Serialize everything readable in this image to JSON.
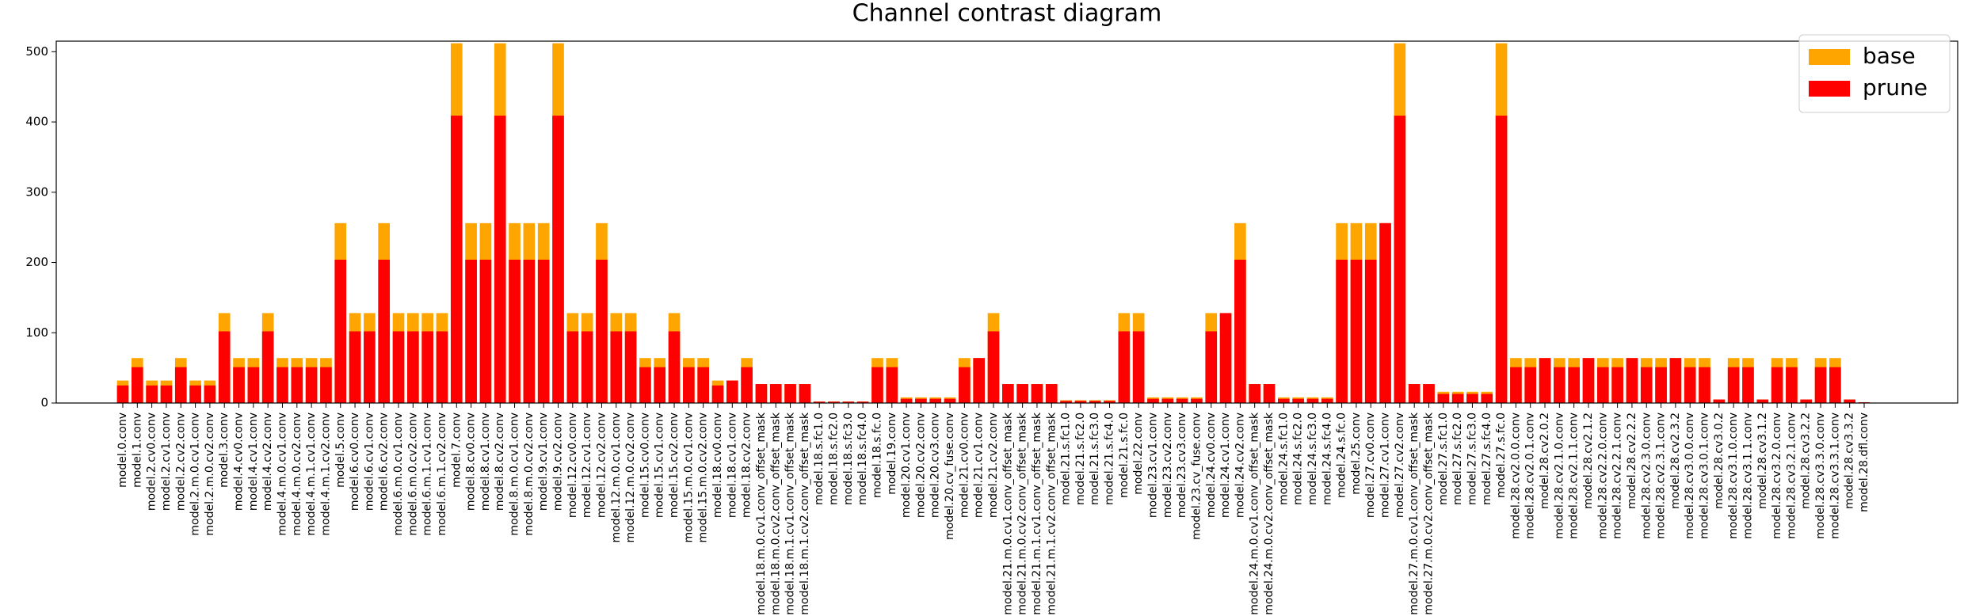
{
  "chart_data": {
    "type": "bar",
    "barmode": "overlay",
    "title": "Channel contrast diagram",
    "legend": "upper right",
    "categories": [
      "model.0.conv",
      "model.1.conv",
      "model.2.cv0.conv",
      "model.2.cv1.conv",
      "model.2.cv2.conv",
      "model.2.m.0.cv1.conv",
      "model.2.m.0.cv2.conv",
      "model.3.conv",
      "model.4.cv0.conv",
      "model.4.cv1.conv",
      "model.4.cv2.conv",
      "model.4.m.0.cv1.conv",
      "model.4.m.0.cv2.conv",
      "model.4.m.1.cv1.conv",
      "model.4.m.1.cv2.conv",
      "model.5.conv",
      "model.6.cv0.conv",
      "model.6.cv1.conv",
      "model.6.cv2.conv",
      "model.6.m.0.cv1.conv",
      "model.6.m.0.cv2.conv",
      "model.6.m.1.cv1.conv",
      "model.6.m.1.cv2.conv",
      "model.7.conv",
      "model.8.cv0.conv",
      "model.8.cv1.conv",
      "model.8.cv2.conv",
      "model.8.m.0.cv1.conv",
      "model.8.m.0.cv2.conv",
      "model.9.cv1.conv",
      "model.9.cv2.conv",
      "model.12.cv0.conv",
      "model.12.cv1.conv",
      "model.12.cv2.conv",
      "model.12.m.0.cv1.conv",
      "model.12.m.0.cv2.conv",
      "model.15.cv0.conv",
      "model.15.cv1.conv",
      "model.15.cv2.conv",
      "model.15.m.0.cv1.conv",
      "model.15.m.0.cv2.conv",
      "model.18.cv0.conv",
      "model.18.cv1.conv",
      "model.18.cv2.conv",
      "model.18.m.0.cv1.conv_offset_mask",
      "model.18.m.0.cv2.conv_offset_mask",
      "model.18.m.1.cv1.conv_offset_mask",
      "model.18.m.1.cv2.conv_offset_mask",
      "model.18.s.fc1.0",
      "model.18.s.fc2.0",
      "model.18.s.fc3.0",
      "model.18.s.fc4.0",
      "model.18.s.fc.0",
      "model.19.conv",
      "model.20.cv1.conv",
      "model.20.cv2.conv",
      "model.20.cv3.conv",
      "model.20.cv_fuse.conv",
      "model.21.cv0.conv",
      "model.21.cv1.conv",
      "model.21.cv2.conv",
      "model.21.m.0.cv1.conv_offset_mask",
      "model.21.m.0.cv2.conv_offset_mask",
      "model.21.m.1.cv1.conv_offset_mask",
      "model.21.m.1.cv2.conv_offset_mask",
      "model.21.s.fc1.0",
      "model.21.s.fc2.0",
      "model.21.s.fc3.0",
      "model.21.s.fc4.0",
      "model.21.s.fc.0",
      "model.22.conv",
      "model.23.cv1.conv",
      "model.23.cv2.conv",
      "model.23.cv3.conv",
      "model.23.cv_fuse.conv",
      "model.24.cv0.conv",
      "model.24.cv1.conv",
      "model.24.cv2.conv",
      "model.24.m.0.cv1.conv_offset_mask",
      "model.24.m.0.cv2.conv_offset_mask",
      "model.24.s.fc1.0",
      "model.24.s.fc2.0",
      "model.24.s.fc3.0",
      "model.24.s.fc4.0",
      "model.24.s.fc.0",
      "model.25.conv",
      "model.27.cv0.conv",
      "model.27.cv1.conv",
      "model.27.cv2.conv",
      "model.27.m.0.cv1.conv_offset_mask",
      "model.27.m.0.cv2.conv_offset_mask",
      "model.27.s.fc1.0",
      "model.27.s.fc2.0",
      "model.27.s.fc3.0",
      "model.27.s.fc4.0",
      "model.27.s.fc.0",
      "model.28.cv2.0.0.conv",
      "model.28.cv2.0.1.conv",
      "model.28.cv2.0.2",
      "model.28.cv2.1.0.conv",
      "model.28.cv2.1.1.conv",
      "model.28.cv2.1.2",
      "model.28.cv2.2.0.conv",
      "model.28.cv2.2.1.conv",
      "model.28.cv2.2.2",
      "model.28.cv2.3.0.conv",
      "model.28.cv2.3.1.conv",
      "model.28.cv2.3.2",
      "model.28.cv3.0.0.conv",
      "model.28.cv3.0.1.conv",
      "model.28.cv3.0.2",
      "model.28.cv3.1.0.conv",
      "model.28.cv3.1.1.conv",
      "model.28.cv3.1.2",
      "model.28.cv3.2.0.conv",
      "model.28.cv3.2.1.conv",
      "model.28.cv3.2.2",
      "model.28.cv3.3.0.conv",
      "model.28.cv3.3.1.conv",
      "model.28.cv3.3.2",
      "model.28.dfl.conv"
    ],
    "series": [
      {
        "name": "base",
        "color": "#ffa500",
        "values": [
          32,
          64,
          32,
          32,
          64,
          32,
          32,
          128,
          64,
          64,
          128,
          64,
          64,
          64,
          64,
          256,
          128,
          128,
          256,
          128,
          128,
          128,
          128,
          512,
          256,
          256,
          512,
          256,
          256,
          256,
          512,
          128,
          128,
          256,
          128,
          128,
          64,
          64,
          128,
          64,
          64,
          32,
          32,
          64,
          27,
          27,
          27,
          27,
          2,
          2,
          2,
          2,
          64,
          64,
          8,
          8,
          8,
          8,
          64,
          64,
          128,
          27,
          27,
          27,
          27,
          4,
          4,
          4,
          4,
          128,
          128,
          8,
          8,
          8,
          8,
          128,
          128,
          256,
          27,
          27,
          8,
          8,
          8,
          8,
          256,
          256,
          256,
          256,
          512,
          27,
          27,
          16,
          16,
          16,
          16,
          512,
          64,
          64,
          64,
          64,
          64,
          64,
          64,
          64,
          64,
          64,
          64,
          64,
          64,
          64,
          5,
          64,
          64,
          5,
          64,
          64,
          5,
          64,
          64,
          5,
          1
        ]
      },
      {
        "name": "prune",
        "color": "#ff0000",
        "values": [
          25,
          51,
          25,
          25,
          51,
          25,
          25,
          102,
          51,
          51,
          102,
          51,
          51,
          51,
          51,
          204,
          102,
          102,
          204,
          102,
          102,
          102,
          102,
          409,
          204,
          204,
          409,
          204,
          204,
          204,
          409,
          102,
          102,
          204,
          102,
          102,
          51,
          51,
          102,
          51,
          51,
          25,
          32,
          51,
          27,
          27,
          27,
          27,
          2,
          2,
          2,
          2,
          51,
          51,
          6,
          6,
          6,
          6,
          51,
          64,
          102,
          27,
          27,
          27,
          27,
          3,
          3,
          3,
          3,
          102,
          102,
          6,
          6,
          6,
          6,
          102,
          128,
          204,
          27,
          27,
          6,
          6,
          6,
          6,
          204,
          204,
          204,
          256,
          409,
          27,
          27,
          13,
          13,
          13,
          13,
          409,
          51,
          51,
          64,
          51,
          51,
          64,
          51,
          51,
          64,
          51,
          51,
          64,
          51,
          51,
          5,
          51,
          51,
          5,
          51,
          51,
          5,
          51,
          51,
          5,
          1
        ]
      }
    ],
    "ylim": [
      0,
      515
    ],
    "yticks": [
      0,
      100,
      200,
      300,
      400,
      500
    ],
    "grid": false
  }
}
